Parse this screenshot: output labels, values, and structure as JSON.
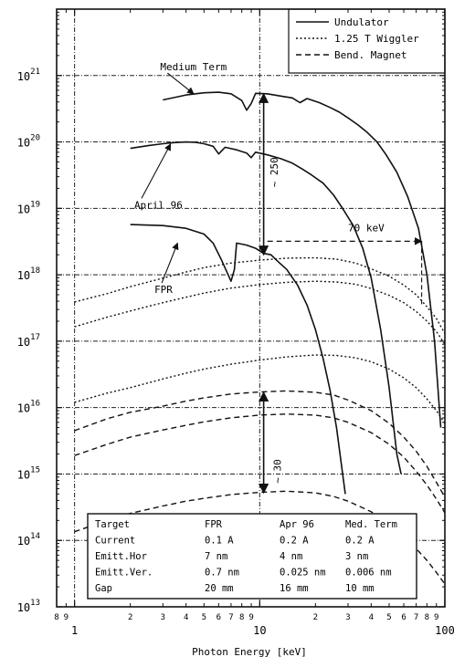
{
  "chart_data": {
    "type": "line",
    "xlabel": "Photon Energy [keV]",
    "ylabel": "",
    "xscale": "log",
    "yscale": "log",
    "xlim": [
      0.8,
      100
    ],
    "ylim": [
      10000000000000.0,
      1e+22
    ],
    "grid": true,
    "legend_position": "top-right",
    "x_major_ticks": [
      {
        "value": 1,
        "label": "1"
      },
      {
        "value": 10,
        "label": "10"
      },
      {
        "value": 100,
        "label": "100"
      }
    ],
    "x_minor_ticks": [
      {
        "value": 0.8,
        "label": "8"
      },
      {
        "value": 0.9,
        "label": "9"
      },
      {
        "value": 2,
        "label": "2"
      },
      {
        "value": 3,
        "label": "3"
      },
      {
        "value": 4,
        "label": "4"
      },
      {
        "value": 5,
        "label": "5"
      },
      {
        "value": 6,
        "label": "6"
      },
      {
        "value": 7,
        "label": "7"
      },
      {
        "value": 8,
        "label": "8"
      },
      {
        "value": 9,
        "label": "9"
      },
      {
        "value": 20,
        "label": "2"
      },
      {
        "value": 30,
        "label": "3"
      },
      {
        "value": 40,
        "label": "4"
      },
      {
        "value": 50,
        "label": "5"
      },
      {
        "value": 60,
        "label": "6"
      },
      {
        "value": 70,
        "label": "7"
      },
      {
        "value": 80,
        "label": "8"
      },
      {
        "value": 90,
        "label": "9"
      }
    ],
    "y_ticks": [
      {
        "value": 10000000000000.0,
        "base": "10",
        "exp": "13"
      },
      {
        "value": 100000000000000.0,
        "base": "10",
        "exp": "14"
      },
      {
        "value": 1000000000000000.0,
        "base": "10",
        "exp": "15"
      },
      {
        "value": 1e+16,
        "base": "10",
        "exp": "16"
      },
      {
        "value": 1e+17,
        "base": "10",
        "exp": "17"
      },
      {
        "value": 1e+18,
        "base": "10",
        "exp": "18"
      },
      {
        "value": 1e+19,
        "base": "10",
        "exp": "19"
      },
      {
        "value": 1e+20,
        "base": "10",
        "exp": "20"
      },
      {
        "value": 1e+21,
        "base": "10",
        "exp": "21"
      }
    ],
    "legend": [
      {
        "label": "Undulator",
        "style": "solid"
      },
      {
        "label": "1.25 T Wiggler",
        "style": "dotted"
      },
      {
        "label": "Bend. Magnet",
        "style": "dashed"
      }
    ],
    "series": [
      {
        "name": "Undulator",
        "style": "solid",
        "points": [
          [
            3.0,
            4.3e+20
          ],
          [
            4.0,
            5.1e+20
          ],
          [
            5.0,
            5.5e+20
          ],
          [
            6.0,
            5.6e+20
          ],
          [
            7.0,
            5.3e+20
          ],
          [
            8.0,
            4.2e+20
          ],
          [
            8.5,
            3e+20
          ],
          [
            9.0,
            3.8e+20
          ],
          [
            9.5,
            5.4e+20
          ],
          [
            11,
            5.3e+20
          ],
          [
            13,
            4.9e+20
          ],
          [
            15,
            4.6e+20
          ],
          [
            16.5,
            3.9e+20
          ],
          [
            18,
            4.5e+20
          ],
          [
            21,
            3.9e+20
          ],
          [
            24,
            3.3e+20
          ],
          [
            27,
            2.8e+20
          ],
          [
            30,
            2.3e+20
          ],
          [
            34,
            1.8e+20
          ],
          [
            38,
            1.4e+20
          ],
          [
            43,
            1e+20
          ],
          [
            48,
            6.5e+19
          ],
          [
            55,
            3.5e+19
          ],
          [
            63,
            1.5e+19
          ],
          [
            72,
            5e+18
          ],
          [
            80,
            1e+18
          ],
          [
            88,
            1e+17
          ],
          [
            95,
            5000000000000000.0
          ]
        ]
      },
      {
        "name": "Undulator",
        "style": "solid",
        "points": [
          [
            2.0,
            8e+19
          ],
          [
            2.5,
            8.8e+19
          ],
          [
            3.0,
            9.4e+19
          ],
          [
            3.5,
            9.8e+19
          ],
          [
            4.0,
            1e+20
          ],
          [
            4.5,
            9.9e+19
          ],
          [
            5.0,
            9.4e+19
          ],
          [
            5.6,
            8.6e+19
          ],
          [
            6.0,
            6.6e+19
          ],
          [
            6.5,
            8.3e+19
          ],
          [
            7.5,
            7.6e+19
          ],
          [
            8.5,
            6.8e+19
          ],
          [
            9.0,
            5.8e+19
          ],
          [
            9.5,
            7e+19
          ],
          [
            11,
            6.4e+19
          ],
          [
            13,
            5.6e+19
          ],
          [
            15,
            4.8e+19
          ],
          [
            17,
            3.9e+19
          ],
          [
            19,
            3.2e+19
          ],
          [
            22,
            2.4e+19
          ],
          [
            25,
            1.6e+19
          ],
          [
            28,
            1e+19
          ],
          [
            32,
            5.5e+18
          ],
          [
            36,
            2.5e+18
          ],
          [
            40,
            9e+17
          ],
          [
            45,
            1.5e+17
          ],
          [
            50,
            2e+16
          ],
          [
            55,
            2000000000000000.0
          ],
          [
            58,
            1000000000000000.0
          ]
        ]
      },
      {
        "name": "Undulator",
        "style": "solid",
        "points": [
          [
            2.0,
            5.7e+18
          ],
          [
            3.0,
            5.5e+18
          ],
          [
            4.0,
            5e+18
          ],
          [
            5.0,
            4.1e+18
          ],
          [
            5.6,
            3e+18
          ],
          [
            6.2,
            1.7e+18
          ],
          [
            7.0,
            8e+17
          ],
          [
            7.3,
            1.2e+18
          ],
          [
            7.5,
            3e+18
          ],
          [
            8.5,
            2.8e+18
          ],
          [
            9.5,
            2.5e+18
          ],
          [
            10.5,
            2.1e+18
          ],
          [
            11.5,
            2e+18
          ],
          [
            12.5,
            1.6e+18
          ],
          [
            14,
            1.2e+18
          ],
          [
            16,
            7e+17
          ],
          [
            18,
            3.5e+17
          ],
          [
            20,
            1.5e+17
          ],
          [
            22,
            5.5e+16
          ],
          [
            24,
            1.8e+16
          ],
          [
            26,
            5000000000000000.0
          ],
          [
            27.5,
            1500000000000000.0
          ],
          [
            29,
            500000000000000.0
          ]
        ]
      },
      {
        "name": "1.25 T Wiggler",
        "style": "dotted",
        "points": [
          [
            1.0,
            3.9e+17
          ],
          [
            1.5,
            5.2e+17
          ],
          [
            2,
            6.6e+17
          ],
          [
            3,
            8.9e+17
          ],
          [
            4,
            1.1e+18
          ],
          [
            5,
            1.28e+18
          ],
          [
            7,
            1.5e+18
          ],
          [
            10,
            1.66e+18
          ],
          [
            14,
            1.78e+18
          ],
          [
            20,
            1.8e+18
          ],
          [
            26,
            1.72e+18
          ],
          [
            33,
            1.5e+18
          ],
          [
            40,
            1.23e+18
          ],
          [
            50,
            9.5e+17
          ],
          [
            60,
            7e+17
          ],
          [
            70,
            5e+17
          ],
          [
            80,
            3.3e+17
          ],
          [
            90,
            2.2e+17
          ],
          [
            100,
            1.3e+17
          ]
        ]
      },
      {
        "name": "1.25 T Wiggler",
        "style": "dotted",
        "points": [
          [
            1.0,
            1.65e+17
          ],
          [
            1.5,
            2.3e+17
          ],
          [
            2,
            2.85e+17
          ],
          [
            3,
            3.8e+17
          ],
          [
            4,
            4.6e+17
          ],
          [
            5,
            5.3e+17
          ],
          [
            7,
            6.3e+17
          ],
          [
            10,
            7.1e+17
          ],
          [
            14,
            7.7e+17
          ],
          [
            20,
            8e+17
          ],
          [
            26,
            7.8e+17
          ],
          [
            33,
            7.2e+17
          ],
          [
            40,
            6.2e+17
          ],
          [
            50,
            4.9e+17
          ],
          [
            60,
            3.8e+17
          ],
          [
            70,
            2.8e+17
          ],
          [
            80,
            2e+17
          ],
          [
            90,
            1.4e+17
          ],
          [
            100,
            9e+16
          ]
        ]
      },
      {
        "name": "1.25 T Wiggler",
        "style": "dotted",
        "points": [
          [
            1.0,
            1.2e+16
          ],
          [
            1.5,
            1.65e+16
          ],
          [
            2,
            2e+16
          ],
          [
            3,
            2.7e+16
          ],
          [
            4,
            3.3e+16
          ],
          [
            5,
            3.8e+16
          ],
          [
            7,
            4.5e+16
          ],
          [
            10,
            5.2e+16
          ],
          [
            14,
            5.8e+16
          ],
          [
            20,
            6.2e+16
          ],
          [
            26,
            6.1e+16
          ],
          [
            33,
            5.6e+16
          ],
          [
            40,
            4.9e+16
          ],
          [
            50,
            3.8e+16
          ],
          [
            60,
            2.8e+16
          ],
          [
            70,
            2e+16
          ],
          [
            80,
            1.35e+16
          ],
          [
            90,
            9000000000000000.0
          ],
          [
            100,
            5800000000000000.0
          ]
        ]
      },
      {
        "name": "Bend. Magnet",
        "style": "dashed",
        "points": [
          [
            1.0,
            4500000000000000.0
          ],
          [
            1.5,
            6800000000000000.0
          ],
          [
            2,
            8500000000000000.0
          ],
          [
            3,
            1.05e+16
          ],
          [
            4,
            1.25e+16
          ],
          [
            5,
            1.4e+16
          ],
          [
            7,
            1.6e+16
          ],
          [
            10,
            1.72e+16
          ],
          [
            14,
            1.78e+16
          ],
          [
            20,
            1.7e+16
          ],
          [
            25,
            1.55e+16
          ],
          [
            30,
            1.3e+16
          ],
          [
            40,
            9000000000000000.0
          ],
          [
            50,
            5800000000000000.0
          ],
          [
            60,
            3600000000000000.0
          ],
          [
            70,
            2200000000000000.0
          ],
          [
            80,
            1300000000000000.0
          ],
          [
            90,
            750000000000000.0
          ],
          [
            100,
            450000000000000.0
          ]
        ]
      },
      {
        "name": "Bend. Magnet",
        "style": "dashed",
        "points": [
          [
            1.0,
            1900000000000000.0
          ],
          [
            1.5,
            2800000000000000.0
          ],
          [
            2,
            3600000000000000.0
          ],
          [
            3,
            4600000000000000.0
          ],
          [
            4,
            5400000000000000.0
          ],
          [
            5,
            6100000000000000.0
          ],
          [
            7,
            7000000000000000.0
          ],
          [
            10,
            7700000000000000.0
          ],
          [
            14,
            8000000000000000.0
          ],
          [
            20,
            7700000000000000.0
          ],
          [
            25,
            7000000000000000.0
          ],
          [
            30,
            6000000000000000.0
          ],
          [
            40,
            4200000000000000.0
          ],
          [
            50,
            2800000000000000.0
          ],
          [
            60,
            1800000000000000.0
          ],
          [
            70,
            1100000000000000.0
          ],
          [
            80,
            680000000000000.0
          ],
          [
            90,
            420000000000000.0
          ],
          [
            100,
            260000000000000.0
          ]
        ]
      },
      {
        "name": "Bend. Magnet",
        "style": "dashed",
        "points": [
          [
            1.0,
            135000000000000.0
          ],
          [
            1.5,
            200000000000000.0
          ],
          [
            2,
            255000000000000.0
          ],
          [
            3,
            330000000000000.0
          ],
          [
            4,
            390000000000000.0
          ],
          [
            5,
            430000000000000.0
          ],
          [
            7,
            490000000000000.0
          ],
          [
            10,
            530000000000000.0
          ],
          [
            14,
            550000000000000.0
          ],
          [
            20,
            520000000000000.0
          ],
          [
            25,
            460000000000000.0
          ],
          [
            30,
            390000000000000.0
          ],
          [
            40,
            270000000000000.0
          ],
          [
            50,
            180000000000000.0
          ],
          [
            60,
            115000000000000.0
          ],
          [
            70,
            75000000000000.0
          ],
          [
            80,
            50000000000000.0
          ],
          [
            90,
            33000000000000.0
          ],
          [
            100,
            22000000000000.0
          ]
        ]
      }
    ],
    "annotations": [
      {
        "text": "Medium Term",
        "x": 2.9,
        "y": 1.2e+21,
        "arrow_to": [
          4.4,
          5.3e+20
        ]
      },
      {
        "text": "April 96",
        "x": 2.1,
        "y": 1e+19,
        "arrow_to": [
          3.3,
          9.3e+19
        ]
      },
      {
        "text": "FPR",
        "x": 2.7,
        "y": 5.3e+17,
        "arrow_to": [
          3.6,
          3e+18
        ]
      },
      {
        "text": "~ 250",
        "x": 12.5,
        "y": 3.5e+19,
        "rotated": true
      },
      {
        "text": "70 keV",
        "x": 30,
        "y": 4.5e+18
      },
      {
        "text": "~ 30",
        "x": 13,
        "y": 1100000000000000.0,
        "rotated": true
      }
    ],
    "markers": {
      "gap_250": {
        "x": 10.5,
        "y_top": 5.3e+20,
        "y_bottom": 2e+18
      },
      "gap_30": {
        "x": 10.5,
        "y_top": 1.7e+16,
        "y_bottom": 520000000000000.0
      },
      "line_70keV": {
        "x_start": 11,
        "x_end": 70,
        "y": 3.2e+18,
        "y_drop_to": 3.5e+17
      }
    },
    "table": {
      "headers": [
        "Target",
        "FPR",
        "Apr 96",
        "Med. Term"
      ],
      "rows": [
        [
          "Current",
          "0.1 A",
          "0.2 A",
          "0.2 A"
        ],
        [
          "Emitt.Hor",
          "7 nm",
          "4 nm",
          "3 nm"
        ],
        [
          "Emitt.Ver.",
          "0.7 nm",
          "0.025 nm",
          "0.006 nm"
        ],
        [
          "Gap",
          "20 mm",
          "16 mm",
          "10 mm"
        ]
      ]
    }
  }
}
